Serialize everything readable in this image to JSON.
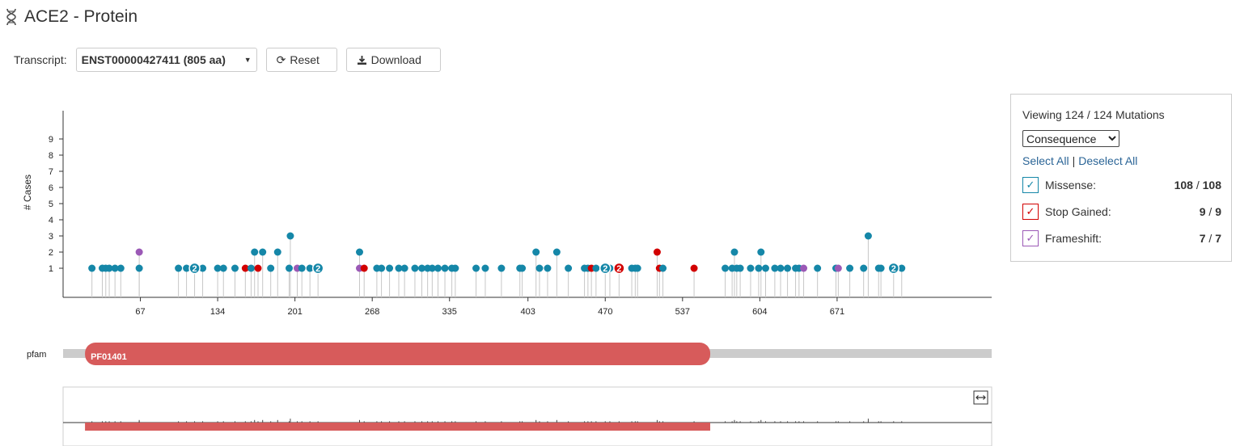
{
  "page": {
    "title": "ACE2 - Protein"
  },
  "controls": {
    "transcript_label": "Transcript:",
    "transcript_value": "ENST00000427411 (805 aa)",
    "reset_label": "Reset",
    "download_label": "Download"
  },
  "chart_data": {
    "type": "scatter",
    "ylabel": "# Cases",
    "ylim": [
      0,
      9
    ],
    "y_ticks": [
      "1",
      "2",
      "3",
      "4",
      "5",
      "6",
      "7",
      "8",
      "9"
    ],
    "xlim": [
      0,
      805
    ],
    "x_ticks": [
      "67",
      "134",
      "201",
      "268",
      "335",
      "403",
      "470",
      "537",
      "604",
      "671"
    ],
    "colors": {
      "Missense": "#1587a8",
      "Stop Gained": "#d20000",
      "Frameshift": "#9b59b6"
    },
    "mutations": [
      {
        "x": 25,
        "y": 1,
        "type": "Missense"
      },
      {
        "x": 34,
        "y": 1,
        "type": "Missense"
      },
      {
        "x": 37,
        "y": 1,
        "type": "Missense"
      },
      {
        "x": 40,
        "y": 1,
        "type": "Missense"
      },
      {
        "x": 45,
        "y": 1,
        "type": "Missense"
      },
      {
        "x": 50,
        "y": 1,
        "type": "Missense"
      },
      {
        "x": 66,
        "y": 1,
        "type": "Missense"
      },
      {
        "x": 66,
        "y": 2,
        "type": "Frameshift"
      },
      {
        "x": 100,
        "y": 1,
        "type": "Missense"
      },
      {
        "x": 107,
        "y": 1,
        "type": "Missense"
      },
      {
        "x": 121,
        "y": 1,
        "type": "Missense"
      },
      {
        "x": 134,
        "y": 1,
        "type": "Missense"
      },
      {
        "x": 139,
        "y": 1,
        "type": "Missense"
      },
      {
        "x": 149,
        "y": 1,
        "type": "Missense"
      },
      {
        "x": 158,
        "y": 1,
        "type": "Stop Gained"
      },
      {
        "x": 163,
        "y": 1,
        "type": "Missense"
      },
      {
        "x": 169,
        "y": 1,
        "type": "Stop Gained"
      },
      {
        "x": 166,
        "y": 2,
        "type": "Missense"
      },
      {
        "x": 173,
        "y": 2,
        "type": "Missense"
      },
      {
        "x": 180,
        "y": 1,
        "type": "Missense"
      },
      {
        "x": 186,
        "y": 2,
        "type": "Missense"
      },
      {
        "x": 196,
        "y": 1,
        "type": "Missense"
      },
      {
        "x": 197,
        "y": 3,
        "type": "Missense"
      },
      {
        "x": 203,
        "y": 1,
        "type": "Frameshift"
      },
      {
        "x": 207,
        "y": 1,
        "type": "Missense"
      },
      {
        "x": 214,
        "y": 1,
        "type": "Missense"
      },
      {
        "x": 257,
        "y": 2,
        "type": "Missense"
      },
      {
        "x": 257,
        "y": 1,
        "type": "Frameshift"
      },
      {
        "x": 261,
        "y": 1,
        "type": "Stop Gained"
      },
      {
        "x": 272,
        "y": 1,
        "type": "Missense"
      },
      {
        "x": 276,
        "y": 1,
        "type": "Missense"
      },
      {
        "x": 283,
        "y": 1,
        "type": "Missense"
      },
      {
        "x": 291,
        "y": 1,
        "type": "Missense"
      },
      {
        "x": 296,
        "y": 1,
        "type": "Missense"
      },
      {
        "x": 305,
        "y": 1,
        "type": "Missense"
      },
      {
        "x": 311,
        "y": 1,
        "type": "Missense"
      },
      {
        "x": 316,
        "y": 1,
        "type": "Missense"
      },
      {
        "x": 320,
        "y": 1,
        "type": "Missense"
      },
      {
        "x": 325,
        "y": 1,
        "type": "Missense"
      },
      {
        "x": 331,
        "y": 1,
        "type": "Missense"
      },
      {
        "x": 337,
        "y": 1,
        "type": "Missense"
      },
      {
        "x": 340,
        "y": 1,
        "type": "Missense"
      },
      {
        "x": 358,
        "y": 1,
        "type": "Missense"
      },
      {
        "x": 366,
        "y": 1,
        "type": "Missense"
      },
      {
        "x": 380,
        "y": 1,
        "type": "Missense"
      },
      {
        "x": 396,
        "y": 1,
        "type": "Missense"
      },
      {
        "x": 398,
        "y": 1,
        "type": "Missense"
      },
      {
        "x": 410,
        "y": 2,
        "type": "Missense"
      },
      {
        "x": 413,
        "y": 1,
        "type": "Missense"
      },
      {
        "x": 420,
        "y": 1,
        "type": "Missense"
      },
      {
        "x": 428,
        "y": 2,
        "type": "Missense"
      },
      {
        "x": 438,
        "y": 1,
        "type": "Missense"
      },
      {
        "x": 452,
        "y": 1,
        "type": "Missense"
      },
      {
        "x": 455,
        "y": 1,
        "type": "Missense"
      },
      {
        "x": 458,
        "y": 1,
        "type": "Stop Gained"
      },
      {
        "x": 462,
        "y": 1,
        "type": "Missense"
      },
      {
        "x": 474,
        "y": 1,
        "type": "Missense"
      },
      {
        "x": 493,
        "y": 1,
        "type": "Missense"
      },
      {
        "x": 496,
        "y": 1,
        "type": "Missense"
      },
      {
        "x": 498,
        "y": 1,
        "type": "Missense"
      },
      {
        "x": 515,
        "y": 2,
        "type": "Stop Gained"
      },
      {
        "x": 517,
        "y": 1,
        "type": "Stop Gained"
      },
      {
        "x": 520,
        "y": 1,
        "type": "Missense"
      },
      {
        "x": 547,
        "y": 1,
        "type": "Stop Gained"
      },
      {
        "x": 574,
        "y": 1,
        "type": "Missense"
      },
      {
        "x": 580,
        "y": 1,
        "type": "Missense"
      },
      {
        "x": 582,
        "y": 2,
        "type": "Missense"
      },
      {
        "x": 584,
        "y": 1,
        "type": "Missense"
      },
      {
        "x": 587,
        "y": 1,
        "type": "Missense"
      },
      {
        "x": 596,
        "y": 1,
        "type": "Missense"
      },
      {
        "x": 603,
        "y": 1,
        "type": "Missense"
      },
      {
        "x": 605,
        "y": 2,
        "type": "Missense"
      },
      {
        "x": 609,
        "y": 1,
        "type": "Missense"
      },
      {
        "x": 617,
        "y": 1,
        "type": "Missense"
      },
      {
        "x": 622,
        "y": 1,
        "type": "Missense"
      },
      {
        "x": 628,
        "y": 1,
        "type": "Missense"
      },
      {
        "x": 635,
        "y": 1,
        "type": "Missense"
      },
      {
        "x": 638,
        "y": 1,
        "type": "Missense"
      },
      {
        "x": 642,
        "y": 1,
        "type": "Frameshift"
      },
      {
        "x": 654,
        "y": 1,
        "type": "Missense"
      },
      {
        "x": 670,
        "y": 1,
        "type": "Missense"
      },
      {
        "x": 672,
        "y": 1,
        "type": "Frameshift"
      },
      {
        "x": 682,
        "y": 1,
        "type": "Missense"
      },
      {
        "x": 694,
        "y": 1,
        "type": "Missense"
      },
      {
        "x": 698,
        "y": 3,
        "type": "Missense"
      },
      {
        "x": 707,
        "y": 1,
        "type": "Missense"
      },
      {
        "x": 709,
        "y": 1,
        "type": "Missense"
      },
      {
        "x": 727,
        "y": 1,
        "type": "Missense"
      }
    ],
    "count_markers": [
      {
        "x": 114,
        "y": 1,
        "count": "2",
        "type": "Missense"
      },
      {
        "x": 221,
        "y": 1,
        "count": "2",
        "type": "Missense"
      },
      {
        "x": 470,
        "y": 1,
        "count": "2",
        "type": "Missense"
      },
      {
        "x": 482,
        "y": 1,
        "count": "2",
        "type": "Stop Gained"
      },
      {
        "x": 720,
        "y": 1,
        "count": "2",
        "type": "Missense"
      }
    ]
  },
  "pfam": {
    "track_label": "pfam",
    "domains": [
      {
        "label": "PF01401",
        "start": 19,
        "end": 561,
        "color": "#d75b5b"
      }
    ]
  },
  "legend": {
    "viewing_text": "Viewing 124 / 124 Mutations",
    "group_by_options": [
      "Consequence"
    ],
    "group_by_selected": "Consequence",
    "select_all": "Select All",
    "separator": "|",
    "deselect_all": "Deselect All",
    "items": [
      {
        "label": "Missense:",
        "shown": "108",
        "sep": "/",
        "total": "108",
        "color": "#1587a8",
        "check": "✓"
      },
      {
        "label": "Stop Gained:",
        "shown": "9",
        "sep": "/",
        "total": "9",
        "color": "#d20000",
        "check": "✓"
      },
      {
        "label": "Frameshift:",
        "shown": "7",
        "sep": "/",
        "total": "7",
        "color": "#9b59b6",
        "check": "✓"
      }
    ]
  },
  "minimap": {
    "expand_icon": "expand-horizontal-icon"
  }
}
